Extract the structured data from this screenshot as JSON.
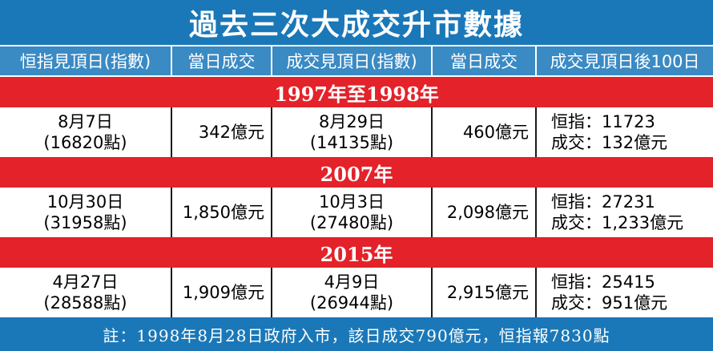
{
  "title": "過去三次大成交升市數據",
  "headers": [
    "恒指見頂日(指數)",
    "當日成交",
    "成交見頂日(指數)",
    "當日成交",
    "成交見頂日後100日"
  ],
  "sections": [
    {
      "label": "1997年至1998年",
      "hsi_peak_date": "8月7日",
      "hsi_peak_index": "(16820點)",
      "hsi_peak_turnover": "342億元",
      "turnover_peak_date": "8月29日",
      "turnover_peak_index": "(14135點)",
      "turnover_peak_turnover": "460億元",
      "after_hsi": "恒指：11723",
      "after_turnover": "成交：132億元"
    },
    {
      "label": "2007年",
      "hsi_peak_date": "10月30日",
      "hsi_peak_index": "(31958點)",
      "hsi_peak_turnover": "1,850億元",
      "turnover_peak_date": "10月3日",
      "turnover_peak_index": "(27480點)",
      "turnover_peak_turnover": "2,098億元",
      "after_hsi": "恒指：27231",
      "after_turnover": "成交：1,233億元"
    },
    {
      "label": "2015年",
      "hsi_peak_date": "4月27日",
      "hsi_peak_index": "(28588點)",
      "hsi_peak_turnover": "1,909億元",
      "turnover_peak_date": "4月9日",
      "turnover_peak_index": "(26944點)",
      "turnover_peak_turnover": "2,915億元",
      "after_hsi": "恒指：25415",
      "after_turnover": "成交：951億元"
    }
  ],
  "footer": "註：1998年8月28日政府入市，該日成交790億元，恒指報7830點",
  "colors": {
    "title_bg": "#1a78b8",
    "header_bg": "#3a8ac4",
    "section_bg": "#e3222a"
  }
}
